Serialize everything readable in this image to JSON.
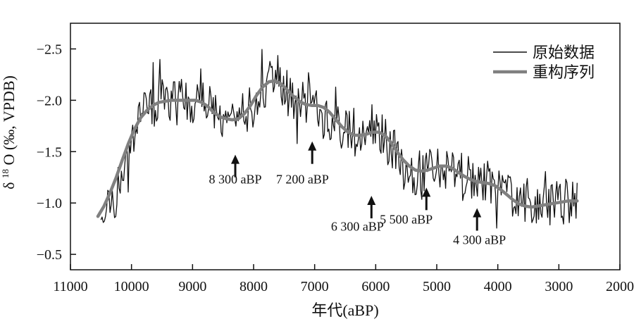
{
  "chart_data": {
    "type": "line",
    "xlabel": "年代(aBP)",
    "ylabel_prefix": "δ",
    "ylabel_sup": "18",
    "ylabel_suffix": "O (‰, VPDB)",
    "xlim": [
      11000,
      2000
    ],
    "ylim": [
      -0.35,
      -2.75
    ],
    "x_axis_reversed": true,
    "y_axis_reversed": true,
    "xticks": [
      11000,
      10000,
      9000,
      8000,
      7000,
      6000,
      5000,
      4000,
      3000,
      2000
    ],
    "xtick_labels": [
      "11000",
      "10000",
      "9000",
      "8000",
      "7000",
      "6000",
      "5000",
      "4000",
      "3000",
      "2000"
    ],
    "yticks": [
      -2.5,
      -2.0,
      -1.5,
      -1.0,
      -0.5
    ],
    "ytick_labels": [
      "−2.5",
      "−2.0",
      "−1.5",
      "−1.0",
      "−0.5"
    ],
    "grid": false,
    "legend_position": "top-right",
    "colors": {
      "raw": "#111111",
      "reconstructed": "#808080",
      "axis": "#111111"
    },
    "series": [
      {
        "name": "原始数据",
        "style": "thin-black-noisy",
        "envelope": {
          "x": [
            10500,
            10300,
            10100,
            10000,
            9800,
            9500,
            9200,
            9000,
            8800,
            8500,
            8300,
            8100,
            7900,
            7700,
            7400,
            7200,
            7000,
            6800,
            6500,
            6300,
            6100,
            5900,
            5700,
            5500,
            5300,
            5000,
            4800,
            4500,
            4300,
            4000,
            3800,
            3500,
            3300,
            3000,
            2700
          ],
          "y": [
            -0.85,
            -1.0,
            -1.35,
            -1.55,
            -1.9,
            -2.0,
            -2.0,
            -2.0,
            -1.98,
            -1.85,
            -1.8,
            -1.9,
            -2.1,
            -2.2,
            -2.0,
            -1.95,
            -1.95,
            -1.8,
            -1.7,
            -1.65,
            -1.68,
            -1.65,
            -1.5,
            -1.3,
            -1.3,
            -1.35,
            -1.3,
            -1.25,
            -1.2,
            -1.15,
            -1.05,
            -0.98,
            -0.98,
            -1.0,
            -1.05
          ],
          "amplitude": 0.22
        },
        "extrema_ranges": {
          "min": -2.58,
          "max": -0.45
        }
      },
      {
        "name": "重构序列",
        "style": "thick-gray-smooth",
        "x": [
          10550,
          10450,
          10350,
          10250,
          10150,
          10050,
          9950,
          9850,
          9750,
          9650,
          9550,
          9450,
          9350,
          9250,
          9150,
          9050,
          8950,
          8850,
          8750,
          8650,
          8550,
          8450,
          8350,
          8250,
          8150,
          8050,
          7950,
          7850,
          7750,
          7650,
          7550,
          7450,
          7350,
          7250,
          7150,
          7050,
          6950,
          6850,
          6750,
          6650,
          6550,
          6450,
          6350,
          6250,
          6150,
          6050,
          5950,
          5850,
          5750,
          5650,
          5550,
          5450,
          5350,
          5250,
          5150,
          5050,
          4950,
          4850,
          4750,
          4650,
          4550,
          4450,
          4350,
          4250,
          4150,
          4050,
          3950,
          3850,
          3750,
          3650,
          3550,
          3450,
          3350,
          3250,
          3150,
          3050,
          2950,
          2850,
          2750,
          2700
        ],
        "y": [
          -0.87,
          -0.97,
          -1.1,
          -1.25,
          -1.42,
          -1.58,
          -1.72,
          -1.83,
          -1.9,
          -1.95,
          -1.98,
          -1.99,
          -2.0,
          -2.0,
          -2.0,
          -2.0,
          -2.0,
          -1.98,
          -1.94,
          -1.88,
          -1.84,
          -1.82,
          -1.81,
          -1.82,
          -1.87,
          -1.95,
          -2.05,
          -2.13,
          -2.18,
          -2.19,
          -2.16,
          -2.1,
          -2.04,
          -1.99,
          -1.96,
          -1.95,
          -1.95,
          -1.93,
          -1.88,
          -1.81,
          -1.74,
          -1.69,
          -1.66,
          -1.66,
          -1.67,
          -1.69,
          -1.69,
          -1.66,
          -1.59,
          -1.5,
          -1.42,
          -1.36,
          -1.32,
          -1.31,
          -1.32,
          -1.34,
          -1.36,
          -1.36,
          -1.34,
          -1.3,
          -1.26,
          -1.23,
          -1.21,
          -1.2,
          -1.19,
          -1.17,
          -1.13,
          -1.08,
          -1.03,
          -0.99,
          -0.97,
          -0.96,
          -0.97,
          -0.98,
          -0.99,
          -1.0,
          -1.01,
          -1.02,
          -1.02,
          -1.02
        ]
      }
    ],
    "annotations": [
      {
        "text": "8 300 aBP",
        "arrow_x": 8300,
        "arrow_y": -1.47,
        "label_x": 8300,
        "label_y": -1.19
      },
      {
        "text": "7 200 aBP",
        "arrow_x": 7040,
        "arrow_y": -1.6,
        "label_x": 7200,
        "label_y": -1.19
      },
      {
        "text": "6 300 aBP",
        "arrow_x": 6070,
        "arrow_y": -1.07,
        "label_x": 6300,
        "label_y": -0.73
      },
      {
        "text": "5 500 aBP",
        "arrow_x": 5170,
        "arrow_y": -1.15,
        "label_x": 5500,
        "label_y": -0.8
      },
      {
        "text": "4 300 aBP",
        "arrow_x": 4340,
        "arrow_y": -0.95,
        "label_x": 4300,
        "label_y": -0.6
      }
    ]
  }
}
